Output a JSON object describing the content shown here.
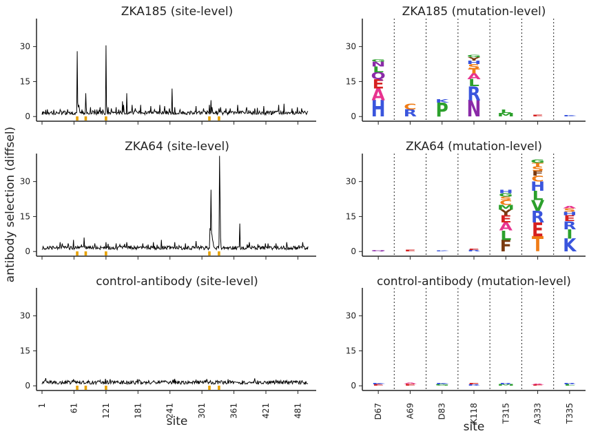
{
  "figure": {
    "ylabel": "antibody selection (diffsel)",
    "left_xlabel": "site",
    "right_xlabel": "site",
    "y_ticks": [
      0,
      15,
      30
    ],
    "ylim": [
      -2,
      42
    ],
    "site_ticks": [
      "1",
      "61",
      "121",
      "181",
      "241",
      "301",
      "361",
      "421",
      "481"
    ],
    "mut_sites": [
      "D67",
      "A69",
      "D83",
      "K118",
      "T315",
      "A333",
      "T335"
    ],
    "marker_color": "#e6a100",
    "line_color": "#000000"
  },
  "chart_data": [
    {
      "type": "line",
      "title": "ZKA185 (site-level)",
      "xlabel": "site",
      "ylabel": "antibody selection (diffsel)",
      "xlim": [
        1,
        505
      ],
      "ylim": [
        -2,
        42
      ],
      "base": 1.5,
      "series": [
        {
          "x": [
            67,
            68,
            69,
            70,
            71,
            76,
            83,
            84,
            92,
            96,
            100,
            104,
            110,
            115,
            121,
            122,
            125,
            131,
            140,
            145,
            152,
            154,
            160,
            170,
            176,
            186,
            205,
            212,
            222,
            231,
            240,
            245,
            250,
            260,
            290,
            304,
            315,
            318,
            320,
            333,
            336,
            346,
            354,
            368,
            385,
            400,
            417,
            445,
            455,
            470,
            480,
            488
          ],
          "y": [
            28,
            6,
            4,
            5,
            3.5,
            3,
            10,
            4,
            4,
            2.5,
            3,
            3,
            4,
            3,
            30.5,
            5,
            4,
            3.5,
            4,
            3,
            6.5,
            5,
            10,
            5,
            3.5,
            5,
            4.5,
            3,
            5,
            4.5,
            3.5,
            12,
            4,
            3,
            4.5,
            3.5,
            5,
            7,
            4,
            3.5,
            4,
            3.5,
            3.5,
            5,
            4,
            3.5,
            4.5,
            5,
            5.5,
            3.5,
            4,
            3.5
          ]
        }
      ]
    },
    {
      "type": "line",
      "title": "ZKA64 (site-level)",
      "xlabel": "site",
      "ylabel": "antibody selection (diffsel)",
      "xlim": [
        1,
        505
      ],
      "ylim": [
        -2,
        42
      ],
      "base": 1.5,
      "series": [
        {
          "x": [
            35,
            50,
            60,
            75,
            80,
            100,
            121,
            140,
            160,
            190,
            200,
            210,
            225,
            250,
            270,
            290,
            316,
            317,
            318,
            319,
            320,
            321,
            322,
            333,
            334,
            335,
            336,
            372,
            390,
            420,
            440,
            460,
            490
          ],
          "y": [
            4,
            3.5,
            5,
            3,
            6,
            3.5,
            4,
            3.5,
            4,
            3.5,
            3,
            4,
            5,
            4,
            3.5,
            4.5,
            10,
            9,
            26.5,
            8,
            7,
            5,
            4,
            3,
            41,
            22,
            6,
            12,
            4,
            3.5,
            3.5,
            4,
            4
          ]
        }
      ]
    },
    {
      "type": "line",
      "title": "control-antibody (site-level)",
      "xlabel": "site",
      "ylabel": "antibody selection (diffsel)",
      "xlim": [
        1,
        505
      ],
      "ylim": [
        -2,
        42
      ],
      "base": 1.4,
      "series": [
        {
          "x": [
            60,
            120,
            180,
            250,
            310,
            350,
            400,
            440
          ],
          "y": [
            2.8,
            3,
            2.8,
            3,
            2.9,
            2.8,
            3.2,
            2.6
          ]
        }
      ]
    },
    {
      "type": "logo",
      "title": "ZKA185 (mutation-level)",
      "xlabel": "site",
      "ylabel": "antibody selection (diffsel)",
      "ylim": [
        -2,
        42
      ],
      "categories": [
        "D67",
        "A69",
        "D83",
        "K118",
        "T315",
        "A333",
        "T335"
      ],
      "stacks": [
        [
          {
            "l": "H",
            "v": 7
          },
          {
            "l": "A",
            "v": 5
          },
          {
            "l": "E",
            "v": 4
          },
          {
            "l": "Q",
            "v": 3
          },
          {
            "l": "L",
            "v": 2.5
          },
          {
            "l": "N",
            "v": 2
          },
          {
            "l": "G",
            "v": 1
          }
        ],
        [
          {
            "l": "R",
            "v": 3
          },
          {
            "l": "C",
            "v": 2.5
          }
        ],
        [
          {
            "l": "P",
            "v": 6
          },
          {
            "l": "K",
            "v": 1.5
          }
        ],
        [
          {
            "l": "N",
            "v": 7
          },
          {
            "l": "R",
            "v": 6
          },
          {
            "l": "L",
            "v": 3
          },
          {
            "l": "A",
            "v": 2.5
          },
          {
            "l": "T",
            "v": 2
          },
          {
            "l": "S",
            "v": 2
          },
          {
            "l": "H",
            "v": 1.5
          },
          {
            "l": "Y",
            "v": 1.5
          },
          {
            "l": "G",
            "v": 1
          }
        ],
        [
          {
            "l": "M",
            "v": 1.5
          },
          {
            "l": "L",
            "v": 1.5
          }
        ],
        [
          {
            "l": "E",
            "v": 0.7
          }
        ],
        [
          {
            "l": "K",
            "v": 0.6
          }
        ]
      ]
    },
    {
      "type": "logo",
      "title": "ZKA64 (mutation-level)",
      "xlabel": "site",
      "ylabel": "antibody selection (diffsel)",
      "ylim": [
        -2,
        42
      ],
      "categories": [
        "D67",
        "A69",
        "D83",
        "K118",
        "T315",
        "A333",
        "T335"
      ],
      "stacks": [
        [
          {
            "l": "Q",
            "v": 0.5
          }
        ],
        [
          {
            "l": "E",
            "v": 0.8
          }
        ],
        [
          {
            "l": "K",
            "v": 0.4
          }
        ],
        [
          {
            "l": "R",
            "v": 0.7
          },
          {
            "l": "E",
            "v": 0.6
          }
        ],
        [
          {
            "l": "F",
            "v": 5
          },
          {
            "l": "L",
            "v": 4
          },
          {
            "l": "A",
            "v": 3.5
          },
          {
            "l": "E",
            "v": 3
          },
          {
            "l": "Y",
            "v": 2.5
          },
          {
            "l": "M",
            "v": 2
          },
          {
            "l": "C",
            "v": 2
          },
          {
            "l": "S",
            "v": 1.5
          },
          {
            "l": "G",
            "v": 1.5
          },
          {
            "l": "H",
            "v": 1.5
          }
        ],
        [
          {
            "l": "T",
            "v": 6.5
          },
          {
            "l": "E",
            "v": 6
          },
          {
            "l": "R",
            "v": 5
          },
          {
            "l": "V",
            "v": 4.5
          },
          {
            "l": "L",
            "v": 4
          },
          {
            "l": "H",
            "v": 4
          },
          {
            "l": "C",
            "v": 2.5
          },
          {
            "l": "F",
            "v": 2
          },
          {
            "l": "S",
            "v": 2
          },
          {
            "l": "T",
            "v": 1.5
          },
          {
            "l": "G",
            "v": 1.5
          }
        ],
        [
          {
            "l": "K",
            "v": 5.5
          },
          {
            "l": "I",
            "v": 4
          },
          {
            "l": "R",
            "v": 3.5
          },
          {
            "l": "E",
            "v": 2.5
          },
          {
            "l": "H",
            "v": 1.5
          },
          {
            "l": "S",
            "v": 1.5
          },
          {
            "l": "A",
            "v": 1
          }
        ]
      ]
    },
    {
      "type": "logo",
      "title": "control-antibody (mutation-level)",
      "xlabel": "site",
      "ylabel": "antibody selection (diffsel)",
      "ylim": [
        -2,
        42
      ],
      "categories": [
        "D67",
        "A69",
        "D83",
        "K118",
        "T315",
        "A333",
        "T335"
      ],
      "stacks": [
        [
          {
            "l": "E",
            "v": 0.7
          },
          {
            "l": "K",
            "v": 0.6
          }
        ],
        [
          {
            "l": "E",
            "v": 0.8
          },
          {
            "l": "A",
            "v": 0.6
          }
        ],
        [
          {
            "l": "G",
            "v": 0.7
          },
          {
            "l": "K",
            "v": 0.6
          }
        ],
        [
          {
            "l": "R",
            "v": 0.6
          },
          {
            "l": "E",
            "v": 0.5
          }
        ],
        [
          {
            "l": "M",
            "v": 0.7
          },
          {
            "l": "R",
            "v": 0.6
          }
        ],
        [
          {
            "l": "E",
            "v": 0.5
          },
          {
            "l": "A",
            "v": 0.4
          }
        ],
        [
          {
            "l": "L",
            "v": 0.7
          },
          {
            "l": "R",
            "v": 0.6
          }
        ]
      ]
    }
  ]
}
